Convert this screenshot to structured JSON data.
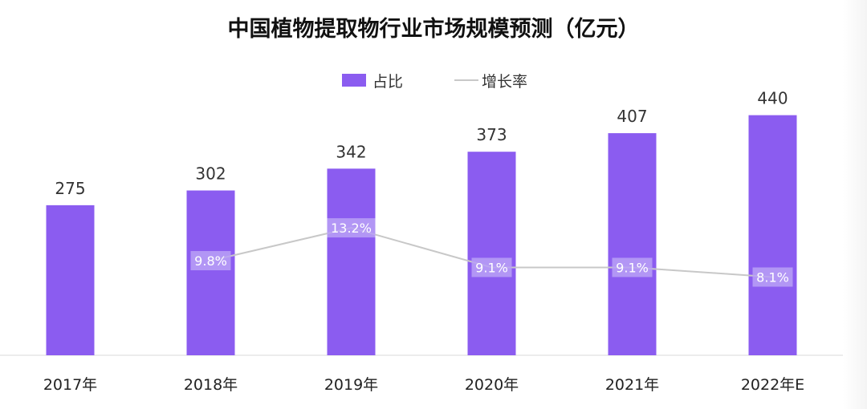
{
  "chart_data": {
    "type": "bar",
    "title": "中国植物提取物行业市场规模预测（亿元）",
    "categories": [
      "2017年",
      "2018年",
      "2019年",
      "2020年",
      "2021年",
      "2022年E"
    ],
    "series": [
      {
        "name": "占比",
        "type": "bar",
        "values": [
          275,
          302,
          342,
          373,
          407,
          440
        ],
        "value_labels": [
          "275",
          "302",
          "342",
          "373",
          "407",
          "440"
        ]
      },
      {
        "name": "增长率",
        "type": "line",
        "values": [
          null,
          9.8,
          13.2,
          9.1,
          9.1,
          8.1
        ],
        "value_labels": [
          "",
          "9.8%",
          "13.2%",
          "9.1%",
          "9.1%",
          "8.1%"
        ]
      }
    ],
    "ylim": [
      0,
      460
    ],
    "y2lim": [
      0,
      26
    ],
    "grid": false,
    "legend_position": "top-center",
    "colors": {
      "bar": "#8b5cf0",
      "line": "#c8c8c8",
      "rate_label_bg": "#b9a0f6"
    }
  }
}
